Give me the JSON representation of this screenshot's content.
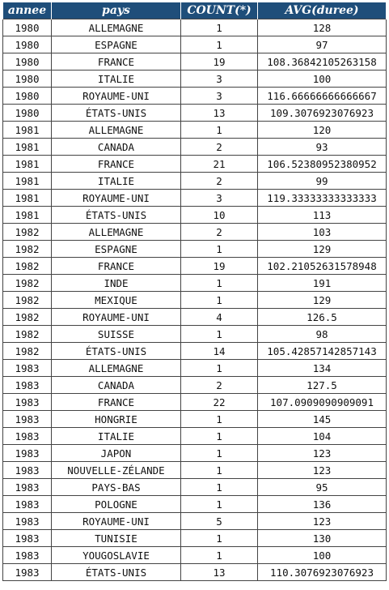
{
  "table": {
    "columns": [
      "annee",
      "pays",
      "COUNT(*)",
      "AVG(duree)"
    ],
    "rows": [
      [
        "1980",
        "ALLEMAGNE",
        "1",
        "128"
      ],
      [
        "1980",
        "ESPAGNE",
        "1",
        "97"
      ],
      [
        "1980",
        "FRANCE",
        "19",
        "108.36842105263158"
      ],
      [
        "1980",
        "ITALIE",
        "3",
        "100"
      ],
      [
        "1980",
        "ROYAUME-UNI",
        "3",
        "116.66666666666667"
      ],
      [
        "1980",
        "ÉTATS-UNIS",
        "13",
        "109.3076923076923"
      ],
      [
        "1981",
        "ALLEMAGNE",
        "1",
        "120"
      ],
      [
        "1981",
        "CANADA",
        "2",
        "93"
      ],
      [
        "1981",
        "FRANCE",
        "21",
        "106.52380952380952"
      ],
      [
        "1981",
        "ITALIE",
        "2",
        "99"
      ],
      [
        "1981",
        "ROYAUME-UNI",
        "3",
        "119.33333333333333"
      ],
      [
        "1981",
        "ÉTATS-UNIS",
        "10",
        "113"
      ],
      [
        "1982",
        "ALLEMAGNE",
        "2",
        "103"
      ],
      [
        "1982",
        "ESPAGNE",
        "1",
        "129"
      ],
      [
        "1982",
        "FRANCE",
        "19",
        "102.21052631578948"
      ],
      [
        "1982",
        "INDE",
        "1",
        "191"
      ],
      [
        "1982",
        "MEXIQUE",
        "1",
        "129"
      ],
      [
        "1982",
        "ROYAUME-UNI",
        "4",
        "126.5"
      ],
      [
        "1982",
        "SUISSE",
        "1",
        "98"
      ],
      [
        "1982",
        "ÉTATS-UNIS",
        "14",
        "105.42857142857143"
      ],
      [
        "1983",
        "ALLEMAGNE",
        "1",
        "134"
      ],
      [
        "1983",
        "CANADA",
        "2",
        "127.5"
      ],
      [
        "1983",
        "FRANCE",
        "22",
        "107.0909090909091"
      ],
      [
        "1983",
        "HONGRIE",
        "1",
        "145"
      ],
      [
        "1983",
        "ITALIE",
        "1",
        "104"
      ],
      [
        "1983",
        "JAPON",
        "1",
        "123"
      ],
      [
        "1983",
        "NOUVELLE-ZÉLANDE",
        "1",
        "123"
      ],
      [
        "1983",
        "PAYS-BAS",
        "1",
        "95"
      ],
      [
        "1983",
        "POLOGNE",
        "1",
        "136"
      ],
      [
        "1983",
        "ROYAUME-UNI",
        "5",
        "123"
      ],
      [
        "1983",
        "TUNISIE",
        "1",
        "130"
      ],
      [
        "1983",
        "YOUGOSLAVIE",
        "1",
        "100"
      ],
      [
        "1983",
        "ÉTATS-UNIS",
        "13",
        "110.3076923076923"
      ]
    ]
  }
}
